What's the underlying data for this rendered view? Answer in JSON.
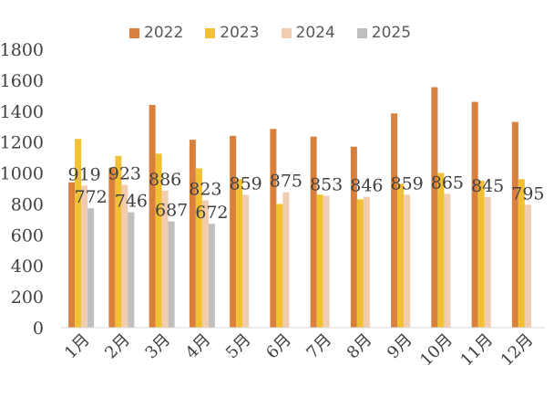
{
  "chart_data": {
    "type": "bar",
    "categories": [
      "1月",
      "2月",
      "3月",
      "4月",
      "5月",
      "6月",
      "7月",
      "8月",
      "9月",
      "10月",
      "11月",
      "12月"
    ],
    "series": [
      {
        "name": "2022",
        "color": "#D9803D",
        "values": [
          940,
          1035,
          1440,
          1215,
          1240,
          1285,
          1235,
          1170,
          1385,
          1555,
          1460,
          1330
        ]
      },
      {
        "name": "2023",
        "color": "#F1C133",
        "values": [
          1220,
          1110,
          1125,
          1030,
          960,
          800,
          860,
          830,
          930,
          1000,
          950,
          960
        ]
      },
      {
        "name": "2024",
        "color": "#F2CCAE",
        "values": [
          919,
          923,
          886,
          823,
          859,
          875,
          853,
          846,
          859,
          865,
          845,
          795
        ]
      },
      {
        "name": "2025",
        "color": "#BFBFBF",
        "values": [
          772,
          746,
          687,
          672,
          null,
          null,
          null,
          null,
          null,
          null,
          null,
          null
        ]
      }
    ],
    "data_labels": {
      "2024": [
        "919",
        "923",
        "886",
        "823",
        "859",
        "875",
        "853",
        "846",
        "859",
        "865",
        "845",
        "795"
      ],
      "2025": [
        "772",
        "746",
        "687",
        "672"
      ]
    },
    "ylim": [
      0,
      1800
    ],
    "yticks": [
      "0",
      "200",
      "400",
      "600",
      "800",
      "1000",
      "1200",
      "1400",
      "1600",
      "1800"
    ],
    "xlabel": "",
    "ylabel": "",
    "grid": false,
    "legend_position": "top"
  }
}
